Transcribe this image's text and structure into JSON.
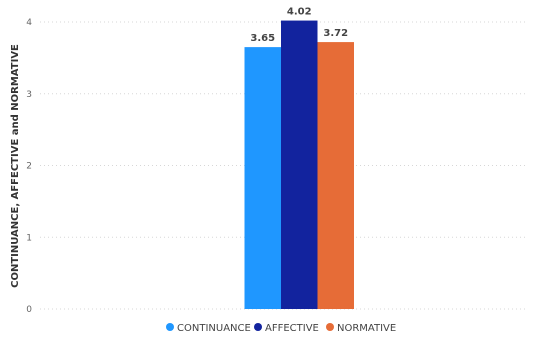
{
  "chart_data": {
    "type": "bar",
    "title": "",
    "xlabel": "",
    "ylabel": "CONTINUANCE, AFFECTIVE and NORMATIVE",
    "ylim": [
      0,
      4
    ],
    "yticks": [
      0,
      1,
      2,
      3,
      4
    ],
    "grid": true,
    "legend_position": "bottom",
    "series": [
      {
        "name": "CONTINUANCE",
        "values": [
          3.65
        ],
        "color": "#1f97ff",
        "label": "3.65"
      },
      {
        "name": "AFFECTIVE",
        "values": [
          4.02
        ],
        "color": "#12239e",
        "label": "4.02"
      },
      {
        "name": "NORMATIVE",
        "values": [
          3.72
        ],
        "color": "#e66c37",
        "label": "3.72"
      }
    ]
  }
}
